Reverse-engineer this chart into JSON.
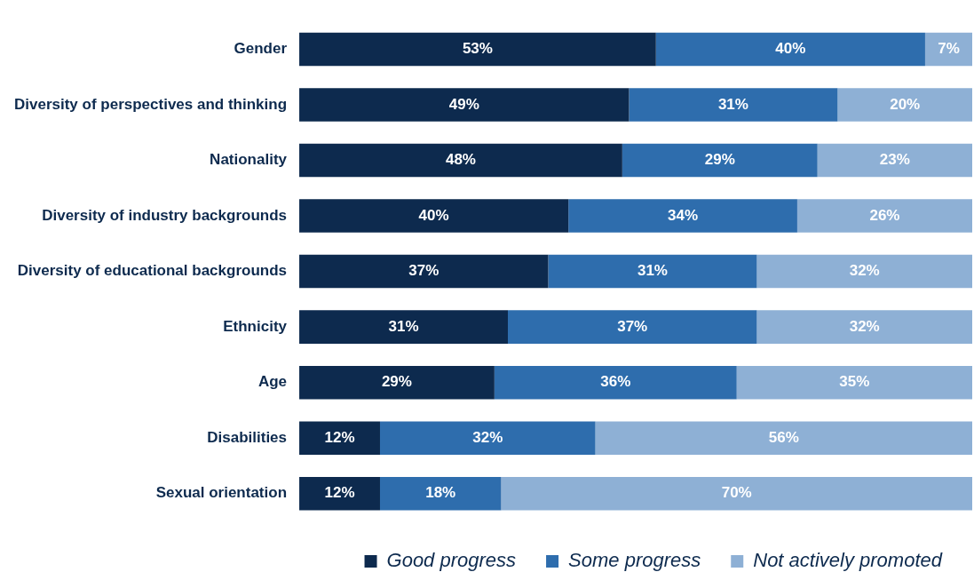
{
  "chart_data": {
    "type": "bar",
    "orientation": "horizontal",
    "stacked": true,
    "legend": "bottom",
    "grid": false,
    "tick_labels": "y",
    "categories": [
      "Gender",
      "Diversity of perspectives and thinking",
      "Nationality",
      "Diversity of industry backgrounds",
      "Diversity of educational backgrounds",
      "Ethnicity",
      "Age",
      "Disabilities",
      "Sexual orientation"
    ],
    "series": [
      {
        "name": "Good progress",
        "color": "#0d2a4e",
        "values": [
          53,
          49,
          48,
          40,
          37,
          31,
          29,
          12,
          12
        ],
        "value_labels": [
          "53%",
          "49%",
          "48%",
          "40%",
          "37%",
          "31%",
          "29%",
          "12%",
          "12%"
        ]
      },
      {
        "name": "Some progress",
        "color": "#2e6dad",
        "values": [
          40,
          31,
          29,
          34,
          31,
          37,
          36,
          32,
          18
        ],
        "value_labels": [
          "40%",
          "31%",
          "29%",
          "34%",
          "31%",
          "37%",
          "36%",
          "32%",
          "18%"
        ]
      },
      {
        "name": "Not actively promoted",
        "color": "#8eb0d5",
        "values": [
          7,
          20,
          23,
          26,
          32,
          32,
          35,
          56,
          70
        ],
        "value_labels": [
          "7%",
          "20%",
          "23%",
          "26%",
          "32%",
          "32%",
          "35%",
          "56%",
          "70%"
        ]
      }
    ]
  }
}
